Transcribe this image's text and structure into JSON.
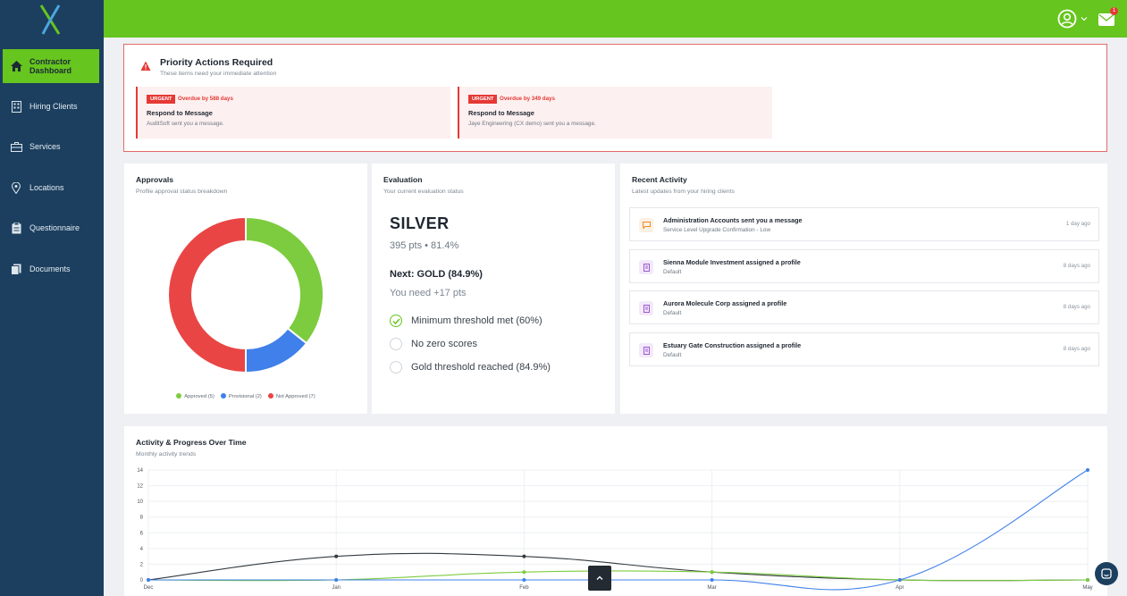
{
  "sidebar": {
    "items": [
      {
        "label": "Contractor Dashboard",
        "icon": "home-icon",
        "active": true
      },
      {
        "label": "Hiring Clients",
        "icon": "building-icon"
      },
      {
        "label": "Services",
        "icon": "briefcase-icon"
      },
      {
        "label": "Locations",
        "icon": "map-pin-icon"
      },
      {
        "label": "Questionnaire",
        "icon": "clipboard-icon"
      },
      {
        "label": "Documents",
        "icon": "documents-icon"
      }
    ]
  },
  "topbar": {
    "mail_badge": "1"
  },
  "priority": {
    "title": "Priority Actions Required",
    "subtitle": "These items need your immediate attention",
    "alerts": [
      {
        "badge": "URGENT",
        "overdue": "Overdue by 588 days",
        "title": "Respond to Message",
        "desc": "AuditSoft sent you a message."
      },
      {
        "badge": "URGENT",
        "overdue": "Overdue by 349 days",
        "title": "Respond to Message",
        "desc": "Jaye Engineering (CX demo) sent you a message."
      }
    ]
  },
  "approvals": {
    "title": "Approvals",
    "subtitle": "Profile approval status breakdown",
    "legend": [
      "Approved (5)",
      "Provisional (2)",
      "Not Approved (7)"
    ],
    "slices": [
      {
        "name": "Approved",
        "value": 5,
        "color": "#7dcc3f"
      },
      {
        "name": "Provisional",
        "value": 2,
        "color": "#3f80ea"
      },
      {
        "name": "Not Approved",
        "value": 7,
        "color": "#e94545"
      }
    ]
  },
  "evaluation": {
    "title": "Evaluation",
    "subtitle": "Your current evaluation status",
    "tier": "SILVER",
    "points": "395 pts • 81.4%",
    "next": "Next: GOLD (84.9%)",
    "need": "You need +17 pts",
    "checks": [
      {
        "label": "Minimum threshold met (60%)",
        "done": true
      },
      {
        "label": "No zero scores",
        "done": false
      },
      {
        "label": "Gold threshold reached (84.9%)",
        "done": false
      }
    ]
  },
  "activity": {
    "title": "Recent Activity",
    "subtitle": "Latest updates from your hiring clients",
    "items": [
      {
        "title": "Administration Accounts sent you a message",
        "sub": "Service Level Upgrade Confirmation - Low",
        "time": "1 day ago",
        "icon": "message-icon",
        "color": "#f08a24",
        "bg": "#fdf1e4"
      },
      {
        "title": "Sienna Module Investment assigned a profile",
        "sub": "Default",
        "time": "8 days ago",
        "icon": "profile-icon",
        "color": "#9b59d0",
        "bg": "#f3e9fa"
      },
      {
        "title": "Aurora Molecule Corp assigned a profile",
        "sub": "Default",
        "time": "8 days ago",
        "icon": "profile-icon",
        "color": "#9b59d0",
        "bg": "#f3e9fa"
      },
      {
        "title": "Estuary Gate Construction assigned a profile",
        "sub": "Default",
        "time": "8 days ago",
        "icon": "profile-icon",
        "color": "#9b59d0",
        "bg": "#f3e9fa"
      }
    ]
  },
  "progress": {
    "title": "Activity & Progress Over Time",
    "subtitle": "Monthly activity trends"
  },
  "chart_data": {
    "type": "line",
    "categories": [
      "Dec",
      "Jan",
      "Feb",
      "Mar",
      "Apr",
      "May"
    ],
    "ylim": [
      0,
      14
    ],
    "yticks": [
      0,
      2,
      4,
      6,
      8,
      10,
      12,
      14
    ],
    "grid": true,
    "series": [
      {
        "color": "#333a40",
        "values": [
          0,
          3,
          3,
          1,
          0,
          0
        ]
      },
      {
        "color": "#7dcc3f",
        "values": [
          0,
          0,
          1,
          1,
          0,
          0
        ]
      },
      {
        "color": "#3f80ea",
        "values": [
          0,
          0,
          0,
          0,
          0,
          14
        ]
      }
    ]
  }
}
